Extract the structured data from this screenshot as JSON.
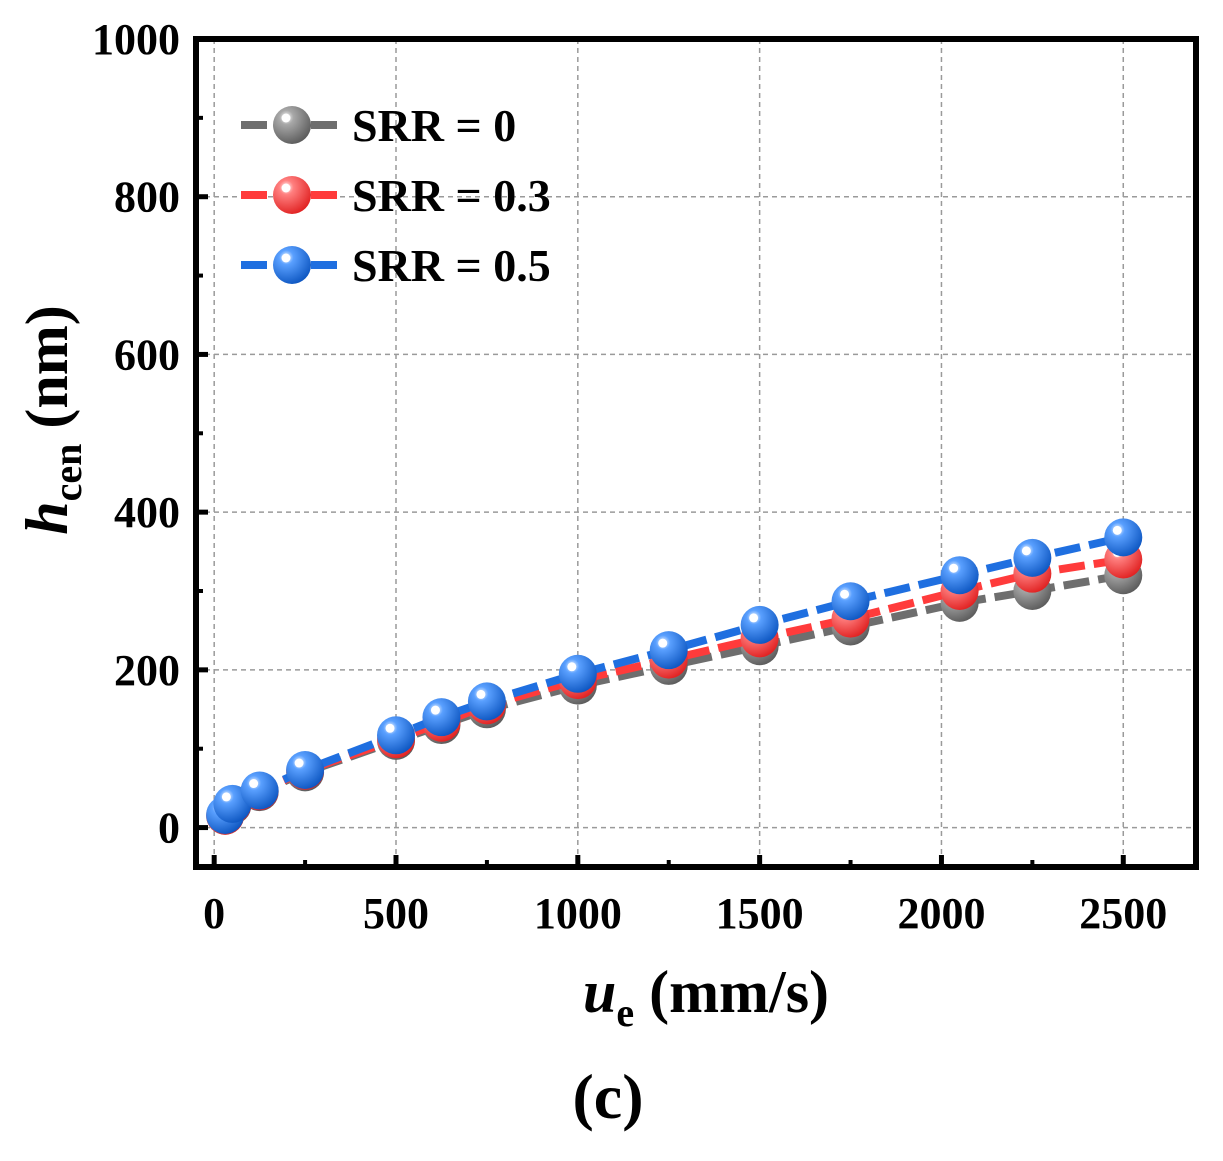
{
  "chart_data": {
    "type": "line",
    "title": "",
    "x": [
      30,
      50,
      125,
      250,
      500,
      625,
      750,
      1000,
      1250,
      1500,
      1750,
      2050,
      2250,
      2500
    ],
    "series": [
      {
        "name": "SRR = 0",
        "color": "#6e6e6e",
        "values": [
          15,
          28,
          45,
          70,
          110,
          130,
          150,
          180,
          205,
          230,
          255,
          285,
          300,
          320
        ]
      },
      {
        "name": "SRR = 0.3",
        "color": "#ff3b3b",
        "values": [
          15,
          29,
          46,
          72,
          112,
          133,
          155,
          187,
          213,
          240,
          265,
          300,
          322,
          340
        ]
      },
      {
        "name": "SRR = 0.5",
        "color": "#1f6fe0",
        "values": [
          16,
          30,
          47,
          73,
          117,
          140,
          160,
          195,
          225,
          257,
          287,
          320,
          342,
          368
        ]
      }
    ],
    "xlim": [
      -50,
      2700
    ],
    "ylim": [
      -50,
      1000
    ],
    "xticks": [
      0,
      500,
      1000,
      1500,
      2000,
      2500
    ],
    "yticks": [
      0,
      200,
      400,
      600,
      800,
      1000
    ],
    "xlabel": {
      "main": "u",
      "sub": "e",
      "units": " (mm/s)"
    },
    "ylabel": {
      "main": "h",
      "sub": "cen",
      "units": " (nm)"
    },
    "grid": true,
    "legend_position": "top-left",
    "caption": "(c)"
  }
}
